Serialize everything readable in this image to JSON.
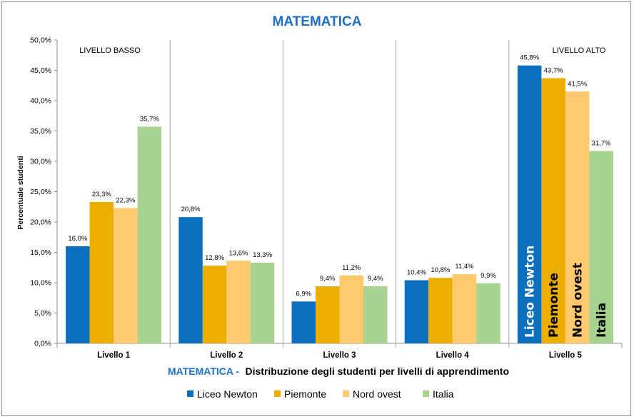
{
  "chart_data": {
    "type": "bar",
    "title": "MATEMATICA",
    "ylabel": "Percentuale studenti",
    "ylim": [
      0,
      50
    ],
    "ytick_labels": [
      "0,0%",
      "5,0%",
      "10,0%",
      "15,0%",
      "20,0%",
      "25,0%",
      "30,0%",
      "35,0%",
      "40,0%",
      "45,0%",
      "50,0%"
    ],
    "categories": [
      "Livello 1",
      "Livello 2",
      "Livello 3",
      "Livello 4",
      "Livello 5"
    ],
    "series": [
      {
        "name": "Liceo Newton",
        "color": "#0b6fc0",
        "values": [
          16.0,
          20.8,
          6.9,
          10.4,
          45.8
        ],
        "labels": [
          "16,0%",
          "20,8%",
          "6,9%",
          "10,4%",
          "45,8%"
        ],
        "bar_text_color": "#ffffff"
      },
      {
        "name": "Piemonte",
        "color": "#ecae00",
        "values": [
          23.3,
          12.8,
          9.4,
          10.8,
          43.7
        ],
        "labels": [
          "23,3%",
          "12,8%",
          "9,4%",
          "10,8%",
          "43,7%"
        ],
        "bar_text_color": "#000000"
      },
      {
        "name": "Nord ovest",
        "color": "#fdc96d",
        "values": [
          22.3,
          13.6,
          11.2,
          11.4,
          41.5
        ],
        "labels": [
          "22,3%",
          "13,6%",
          "11,2%",
          "11,4%",
          "41,5%"
        ],
        "bar_text_color": "#000000"
      },
      {
        "name": "Italia",
        "color": "#a6d38f",
        "values": [
          35.7,
          13.3,
          9.4,
          9.9,
          31.7
        ],
        "labels": [
          "35,7%",
          "13,3%",
          "9,4%",
          "9,9%",
          "31,7%"
        ],
        "bar_text_color": "#000000"
      }
    ],
    "annotations": {
      "low_level": "LIVELLO BASSO",
      "high_level": "LIVELLO ALTO"
    },
    "subtitle_prefix": "MATEMATICA -",
    "subtitle_rest": "Distribuzione degli studenti per livelli di apprendimento",
    "grid": false,
    "legend_position": "bottom"
  }
}
